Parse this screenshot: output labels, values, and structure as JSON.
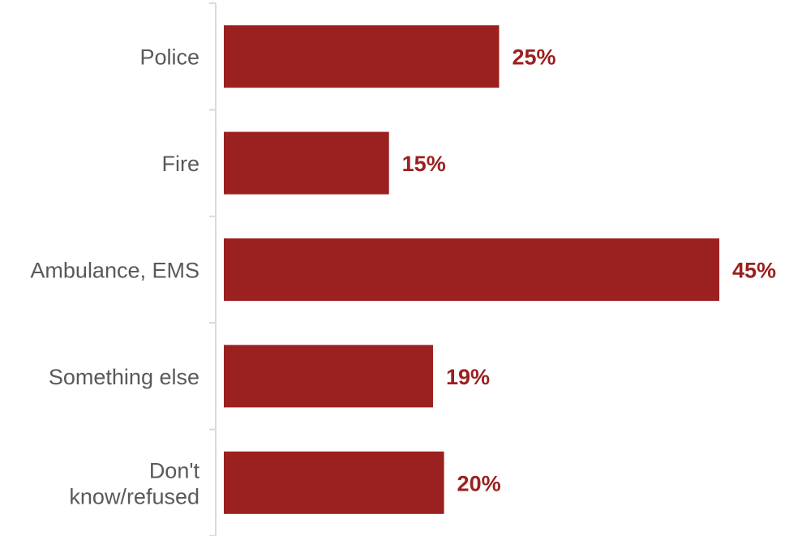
{
  "chart_data": {
    "type": "bar",
    "orientation": "horizontal",
    "categories": [
      "Police",
      "Fire",
      "Ambulance, EMS",
      "Something else",
      "Don't know/refused"
    ],
    "category_lines": [
      [
        "Police"
      ],
      [
        "Fire"
      ],
      [
        "Ambulance, EMS"
      ],
      [
        "Something else"
      ],
      [
        "Don't",
        "know/refused"
      ]
    ],
    "values": [
      25,
      15,
      45,
      19,
      20
    ],
    "value_labels": [
      "25%",
      "15%",
      "45%",
      "19%",
      "20%"
    ],
    "unit": "%",
    "xlim": [
      0,
      45
    ],
    "title": "",
    "xlabel": "",
    "ylabel": "",
    "grid": false,
    "legend": "none",
    "colors": {
      "bar": "#9b2020",
      "value_label": "#9b2020",
      "category_label": "#595959",
      "axis": "#d9d9d9"
    }
  }
}
